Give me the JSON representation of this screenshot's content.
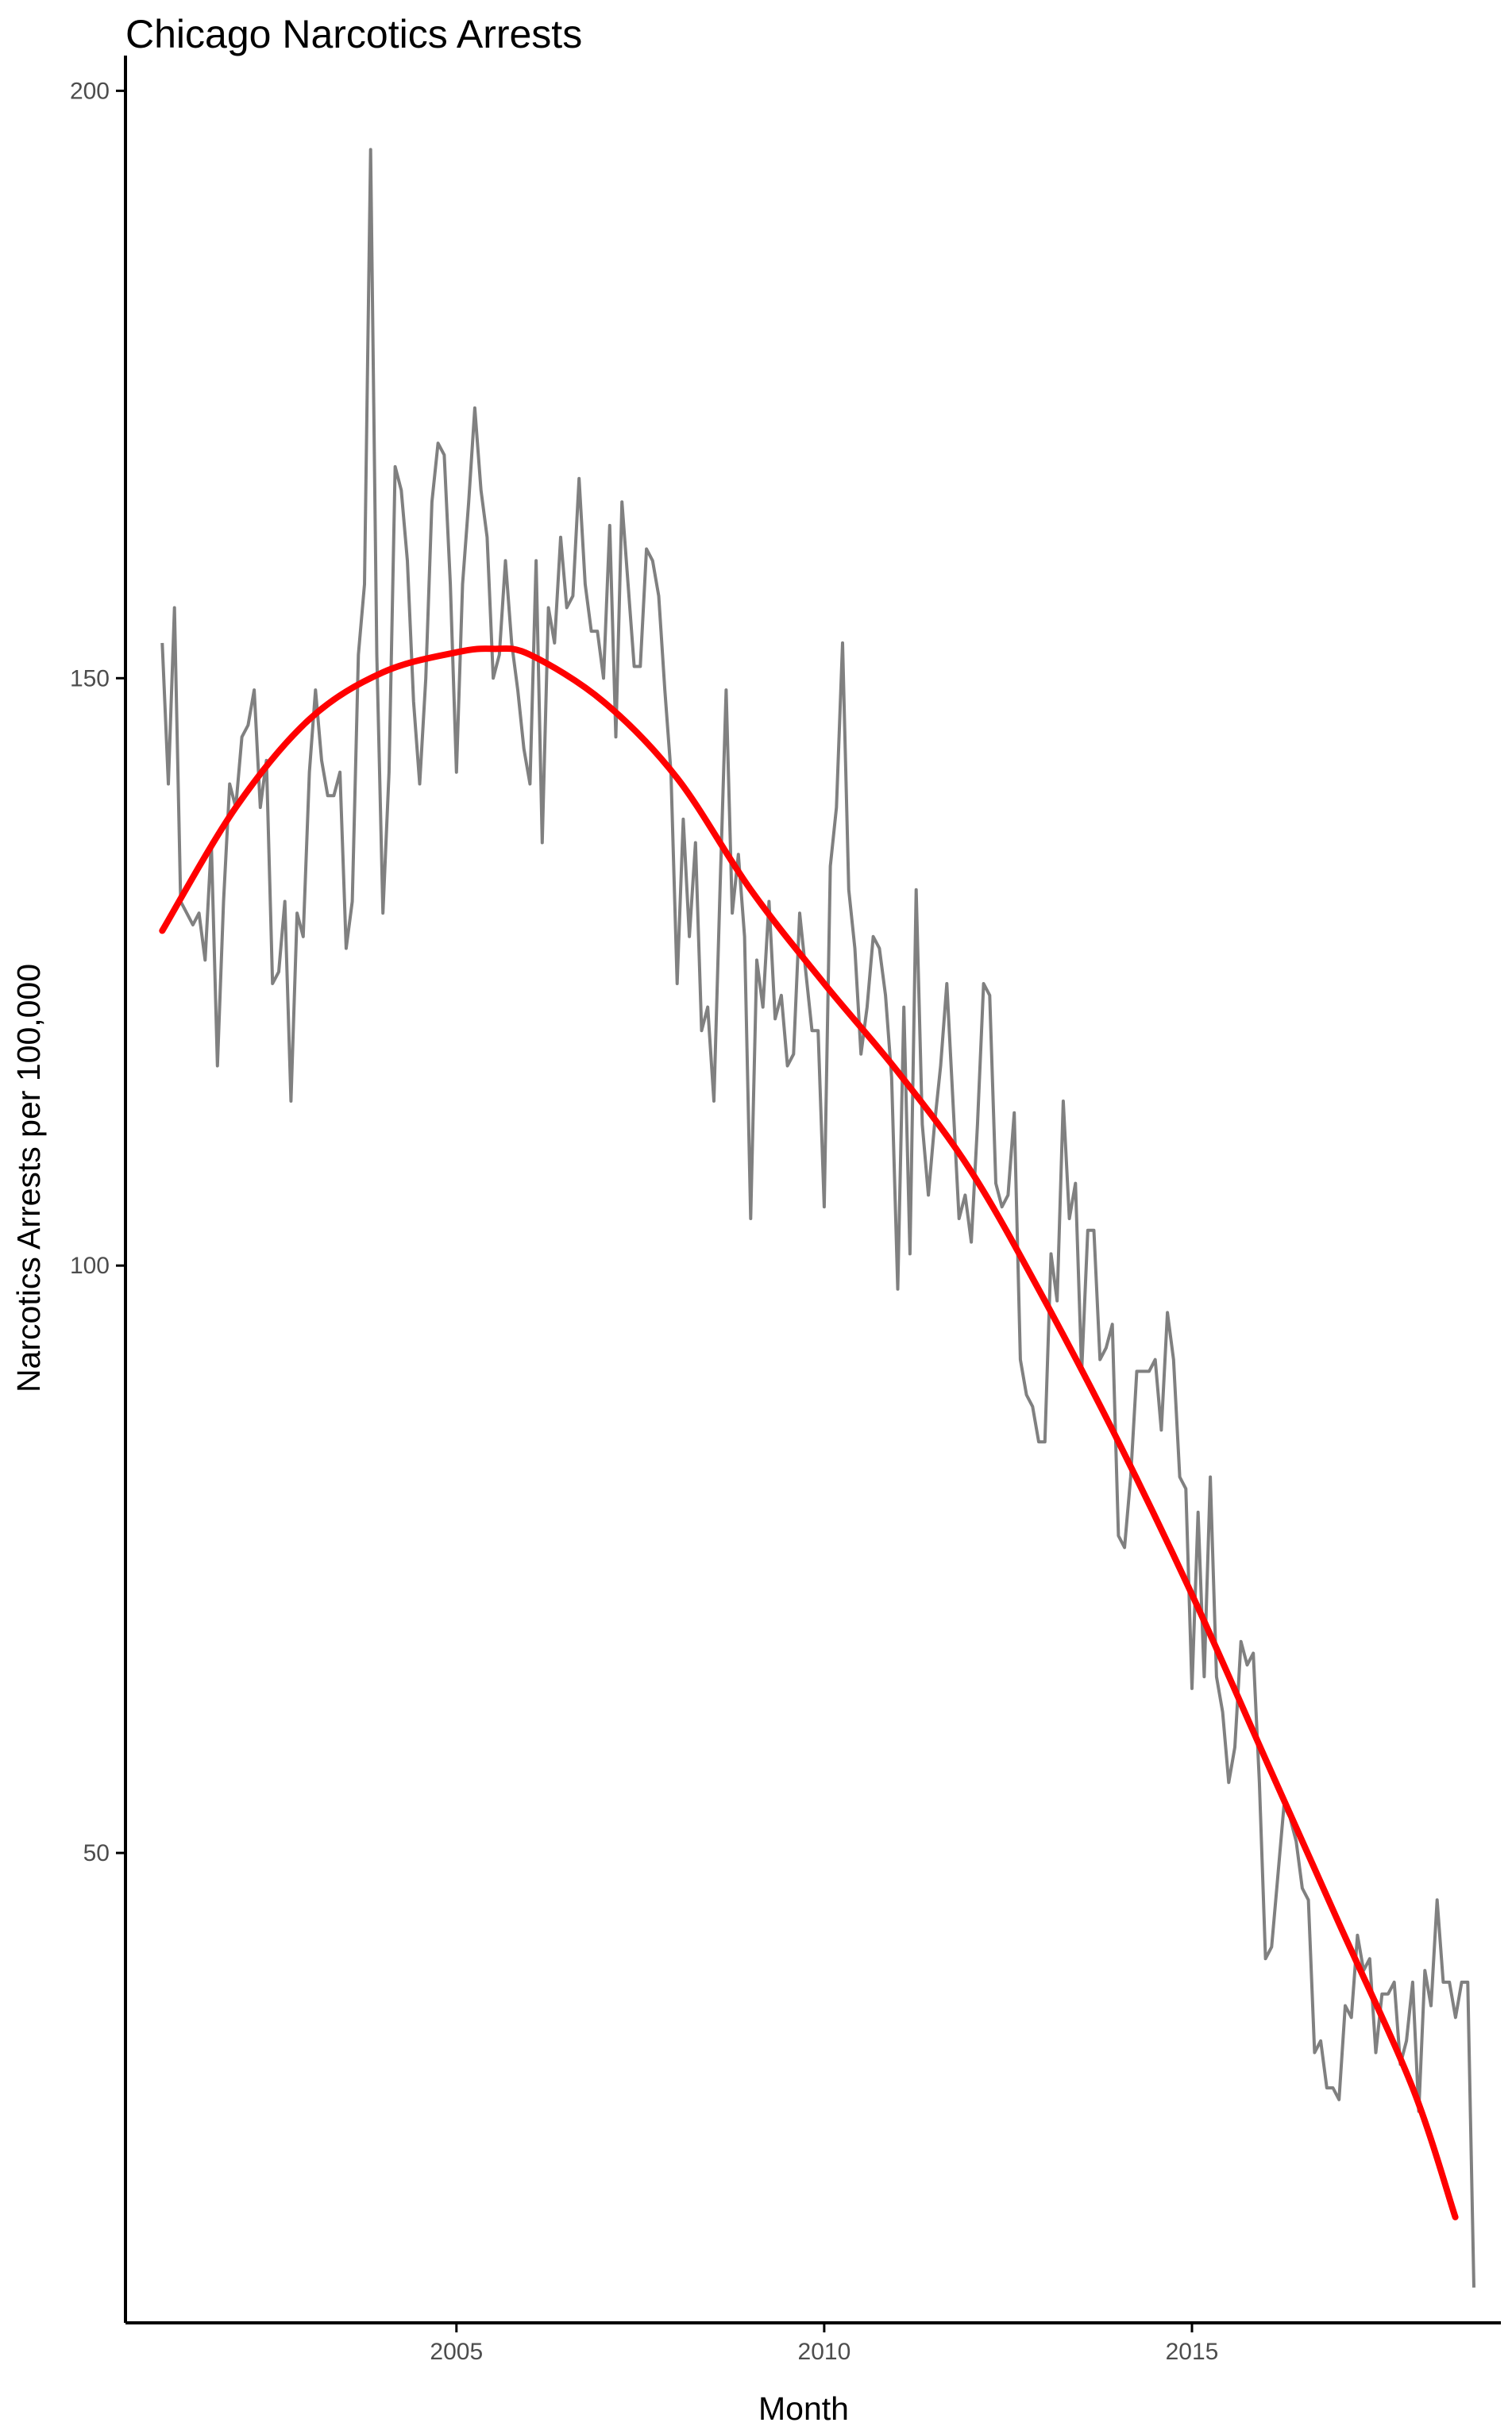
{
  "chart_data": {
    "type": "line",
    "title": "Chicago Narcotics Arrests",
    "xlabel": "Month",
    "ylabel": "Narcotics Arrests per 100,000",
    "xlim": [
      2000.5,
      2019.2
    ],
    "ylim": [
      10,
      203
    ],
    "x_ticks": [
      2005,
      2010,
      2015
    ],
    "y_ticks": [
      50,
      100,
      150,
      200
    ],
    "grid": false,
    "legend": "none",
    "colors": {
      "series": "#808080",
      "trend": "#ff0000",
      "axis": "#000000",
      "tick_label": "#4d4d4d"
    },
    "series": [
      {
        "style": "raw",
        "x_start": 2001.0,
        "step": 0.0833333,
        "values": [
          153,
          141,
          156,
          131,
          130,
          129,
          130,
          126,
          136,
          117,
          131,
          141,
          139,
          145,
          146,
          149,
          139,
          143,
          124,
          125,
          131,
          114,
          130,
          128,
          142,
          149,
          143,
          140,
          140,
          142,
          127,
          131,
          152,
          158,
          195,
          152,
          130,
          142,
          168,
          166,
          160,
          148,
          141,
          150,
          165,
          170,
          169,
          158,
          142,
          158,
          165,
          173,
          166,
          162,
          150,
          152,
          160,
          153,
          149,
          144,
          141,
          160,
          136,
          156,
          153,
          162,
          156,
          157,
          167,
          158,
          154,
          154,
          150,
          163,
          145,
          165,
          158,
          151,
          151,
          161,
          160,
          157,
          149,
          142,
          124,
          138,
          128,
          136,
          120,
          122,
          114,
          132,
          149,
          130,
          135,
          128,
          104,
          126,
          122,
          131,
          121,
          123,
          117,
          118,
          130,
          125,
          120,
          120,
          105,
          134,
          139,
          153,
          132,
          127,
          118,
          122,
          128,
          127,
          123,
          116,
          98,
          122,
          101,
          132,
          112,
          106,
          112,
          117,
          124,
          114,
          104,
          106,
          102,
          112,
          124,
          123,
          107,
          105,
          106,
          113,
          92,
          89,
          88,
          85,
          85,
          101,
          97,
          114,
          104,
          107,
          91,
          103,
          103,
          92,
          93,
          95,
          77,
          76,
          82,
          91,
          91,
          91,
          92,
          86,
          96,
          92,
          82,
          81,
          64,
          79,
          65,
          82,
          65,
          62,
          56,
          59,
          68,
          66,
          67,
          56,
          41,
          42,
          48,
          54,
          53,
          51,
          47,
          46,
          33,
          34,
          30,
          30,
          29,
          37,
          36,
          43,
          40,
          41,
          33,
          38,
          38,
          39,
          32,
          34,
          39,
          28,
          40,
          37,
          46,
          39,
          39,
          36,
          39,
          39,
          13
        ]
      },
      {
        "style": "smooth-trend",
        "x": [
          2001,
          2002,
          2003,
          2004,
          2005,
          2005.5,
          2006,
          2007,
          2008,
          2009,
          2010,
          2011,
          2012,
          2013,
          2014,
          2015,
          2016,
          2017,
          2018,
          2018.58
        ],
        "values": [
          128.5,
          139,
          146.5,
          150.5,
          152.2,
          152.5,
          152,
          148,
          141.5,
          132,
          124,
          116.5,
          108,
          97,
          85,
          72,
          58,
          44,
          30,
          19
        ]
      }
    ]
  }
}
